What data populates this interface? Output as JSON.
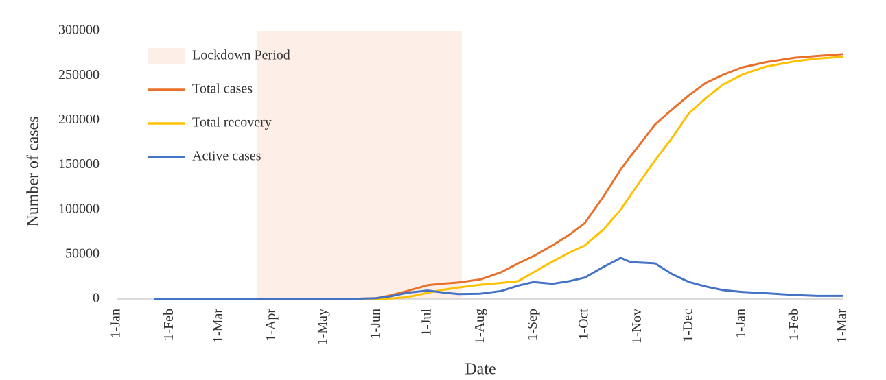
{
  "chart_data": {
    "type": "line",
    "x_label": "Date",
    "y_label": "Number of cases",
    "x": [
      22,
      40,
      60,
      80,
      100,
      120,
      140,
      152,
      160,
      170,
      182,
      190,
      200,
      213,
      225,
      235,
      244,
      255,
      265,
      274,
      285,
      295,
      300,
      305,
      315,
      325,
      335,
      345,
      355,
      366,
      380,
      397,
      410,
      425
    ],
    "series": [
      {
        "name": "Total cases",
        "color": "#e8702a",
        "values": [
          0,
          0,
          0,
          0,
          0,
          0,
          300,
          1000,
          4000,
          9000,
          15500,
          17000,
          18500,
          22000,
          30000,
          40000,
          48000,
          60000,
          72000,
          85000,
          115000,
          145000,
          158000,
          170000,
          195000,
          212000,
          228000,
          242000,
          251000,
          259000,
          265000,
          270000,
          272000,
          274000
        ]
      },
      {
        "name": "Total recovery",
        "color": "#ffc000",
        "values": [
          0,
          0,
          0,
          0,
          0,
          0,
          0,
          0,
          500,
          2000,
          7000,
          10000,
          13000,
          16000,
          18000,
          20000,
          30000,
          42000,
          52000,
          60000,
          78000,
          100000,
          114000,
          128000,
          155000,
          180000,
          208000,
          225000,
          240000,
          251000,
          260000,
          266000,
          269000,
          271000
        ]
      },
      {
        "name": "Active cases",
        "color": "#4472c4",
        "values": [
          0,
          0,
          0,
          0,
          0,
          0,
          300,
          1000,
          3000,
          7000,
          9500,
          7500,
          5500,
          6000,
          9000,
          15000,
          19000,
          17000,
          20000,
          24000,
          36000,
          46000,
          42000,
          41000,
          40000,
          28000,
          19000,
          14000,
          10000,
          8000,
          6500,
          4500,
          3500,
          3500
        ]
      }
    ],
    "lockdown": {
      "name": "Lockdown Period",
      "start": 82,
      "end": 202,
      "color": "#fdeee8"
    },
    "xlim": [
      0,
      425
    ],
    "xticks": [
      {
        "value": 0,
        "label": "1-Jan"
      },
      {
        "value": 31,
        "label": "1-Feb"
      },
      {
        "value": 60,
        "label": "1-Mar"
      },
      {
        "value": 91,
        "label": "1-Apr"
      },
      {
        "value": 121,
        "label": "1-May"
      },
      {
        "value": 152,
        "label": "1-Jun"
      },
      {
        "value": 182,
        "label": "1-Jul"
      },
      {
        "value": 213,
        "label": "1-Aug"
      },
      {
        "value": 244,
        "label": "1-Sep"
      },
      {
        "value": 274,
        "label": "1-Oct"
      },
      {
        "value": 305,
        "label": "1-Nov"
      },
      {
        "value": 335,
        "label": "1-Dec"
      },
      {
        "value": 366,
        "label": "1-Jan"
      },
      {
        "value": 397,
        "label": "1-Feb"
      },
      {
        "value": 425,
        "label": "1-Mar"
      }
    ],
    "ylim": [
      0,
      300000
    ],
    "yticks": [
      0,
      50000,
      100000,
      150000,
      200000,
      250000,
      300000
    ],
    "legend": "upper left"
  }
}
